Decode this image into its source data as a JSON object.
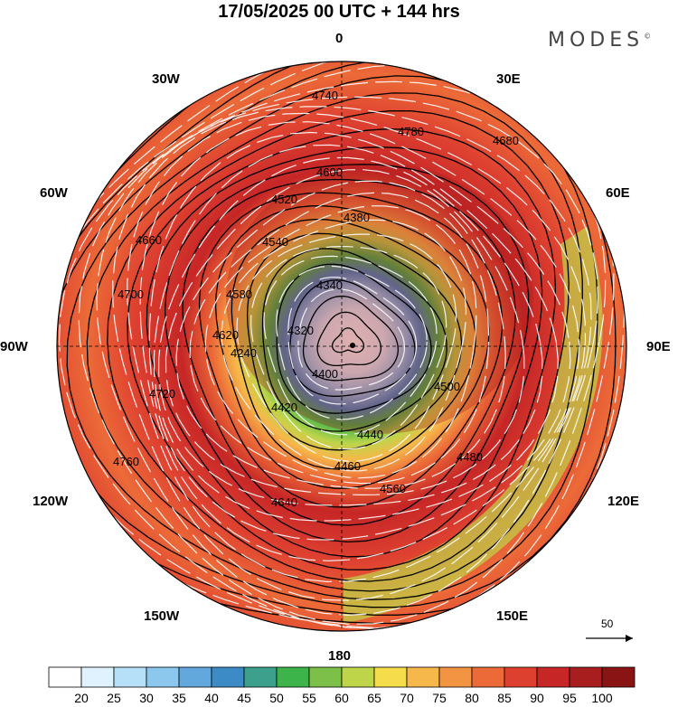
{
  "header": {
    "title": "17/05/2025  00 UTC  + 144 hrs",
    "brand": "MODES",
    "brand_mark": "©"
  },
  "map": {
    "projection": "polar-stereographic-north",
    "longitude_labels": [
      "0",
      "30E",
      "60E",
      "90E",
      "120E",
      "150E",
      "180",
      "150W",
      "120W",
      "90W",
      "60W",
      "30W"
    ],
    "contour_labels": [
      "4740",
      "4780",
      "4680",
      "4600",
      "4520",
      "4380",
      "4340",
      "4320",
      "4400",
      "4440",
      "4500",
      "4460",
      "4540",
      "4580",
      "4620",
      "4640",
      "4660",
      "4700",
      "4720",
      "4760",
      "4560",
      "4420",
      "4480",
      "4240"
    ],
    "background_color": "#ffffff"
  },
  "vector_legend": {
    "label": "50"
  },
  "colorbar": {
    "ticks": [
      "20",
      "25",
      "30",
      "35",
      "40",
      "45",
      "50",
      "55",
      "60",
      "65",
      "70",
      "75",
      "80",
      "85",
      "90",
      "95",
      "100"
    ],
    "colors": [
      "#ffffff",
      "#dff2fd",
      "#b5e0f7",
      "#8cc8ee",
      "#62a8dc",
      "#3d8bc6",
      "#3ca08c",
      "#3cb44a",
      "#7cc04a",
      "#bed54a",
      "#f5dc4a",
      "#f6b84a",
      "#f39442",
      "#ec6a38",
      "#de4030",
      "#c62626",
      "#a81e1e",
      "#8a1414"
    ]
  }
}
